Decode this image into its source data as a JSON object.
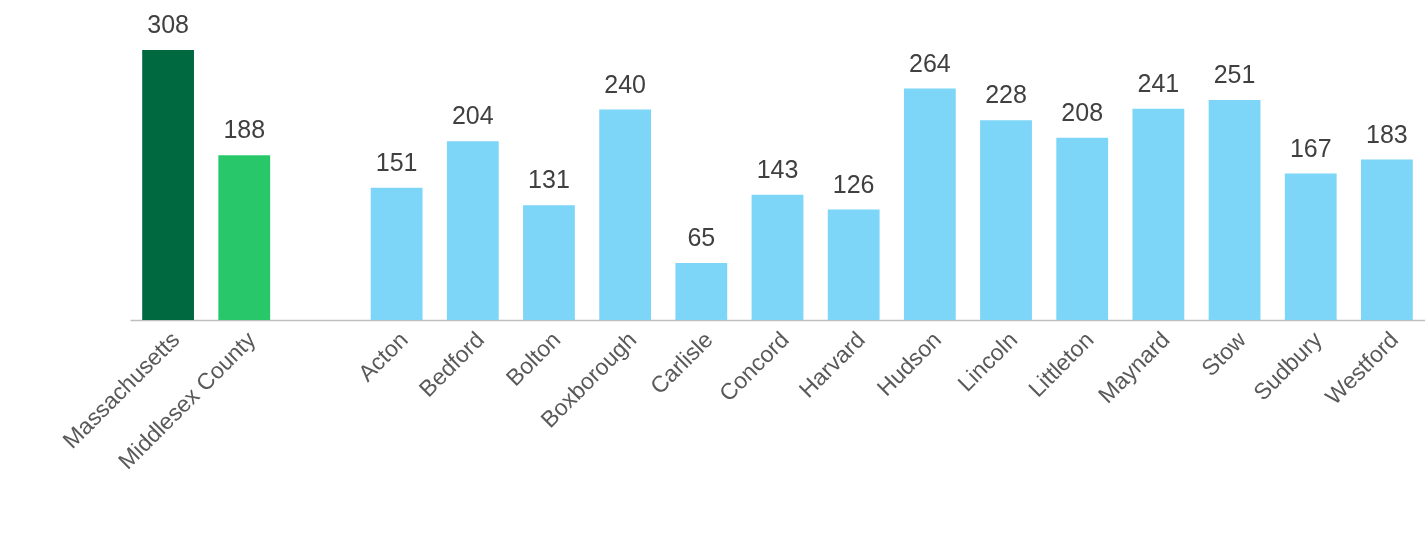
{
  "chart_data": {
    "type": "bar",
    "categories": [
      "Massachusetts",
      "Middlesex County",
      null,
      "Acton",
      "Bedford",
      "Bolton",
      "Boxborough",
      "Carlisle",
      "Concord",
      "Harvard",
      "Hudson",
      "Lincoln",
      "Littleton",
      "Maynard",
      "Stow",
      "Sudbury",
      "Westford"
    ],
    "values": [
      308,
      188,
      null,
      151,
      204,
      131,
      240,
      65,
      143,
      126,
      264,
      228,
      208,
      241,
      251,
      167,
      183
    ],
    "colors": [
      "#006940",
      "#27c76a",
      null,
      "#7dd5f7",
      "#7dd5f7",
      "#7dd5f7",
      "#7dd5f7",
      "#7dd5f7",
      "#7dd5f7",
      "#7dd5f7",
      "#7dd5f7",
      "#7dd5f7",
      "#7dd5f7",
      "#7dd5f7",
      "#7dd5f7",
      "#7dd5f7",
      "#7dd5f7"
    ],
    "data_labels": true
  }
}
